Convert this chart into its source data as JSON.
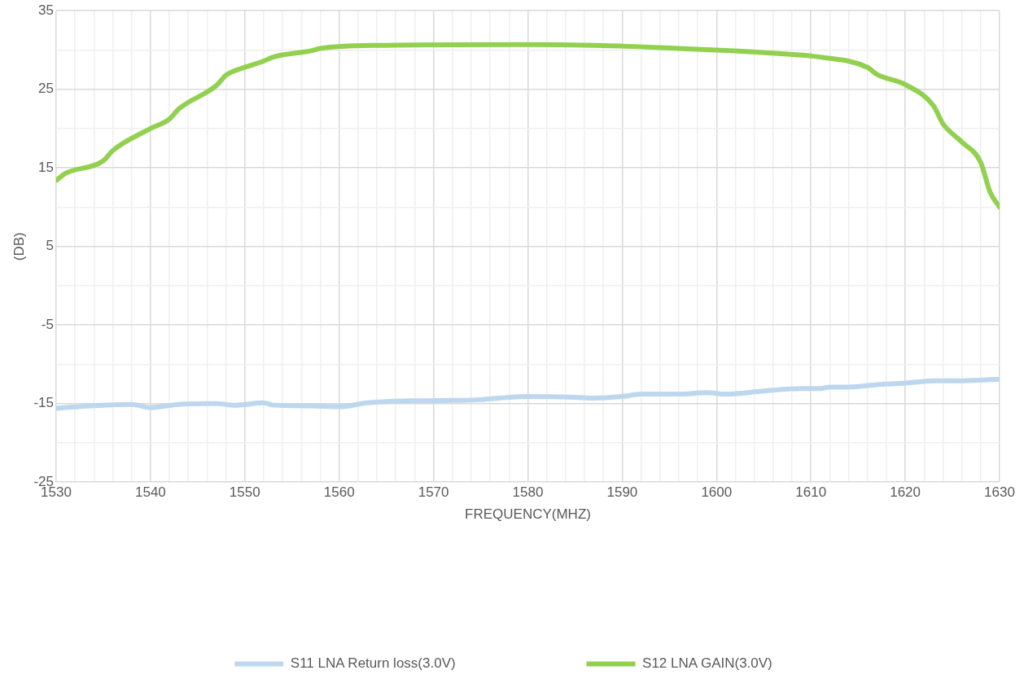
{
  "chart_data": {
    "type": "line",
    "xlabel": "FREQUENCY(MHZ)",
    "ylabel": "(DB)",
    "xlim": [
      1530,
      1630
    ],
    "xticks": [
      1530,
      {
        "value": 1532,
        "label": null
      },
      {
        "value": 1534,
        "label": null
      },
      {
        "value": 1536,
        "label": null
      },
      {
        "value": 1538,
        "label": null
      },
      1540,
      {
        "value": 1542,
        "label": null
      },
      {
        "value": 1544,
        "label": null
      },
      {
        "value": 1546,
        "label": null
      },
      {
        "value": 1548,
        "label": null
      },
      1550,
      {
        "value": 1552,
        "label": null
      },
      {
        "value": 1554,
        "label": null
      },
      {
        "value": 1556,
        "label": null
      },
      {
        "value": 1558,
        "label": null
      },
      1560,
      {
        "value": 1562,
        "label": null
      },
      {
        "value": 1564,
        "label": null
      },
      {
        "value": 1566,
        "label": null
      },
      {
        "value": 1568,
        "label": null
      },
      1570,
      {
        "value": 1572,
        "label": null
      },
      {
        "value": 1574,
        "label": null
      },
      {
        "value": 1576,
        "label": null
      },
      {
        "value": 1578,
        "label": null
      },
      1580,
      {
        "value": 1582,
        "label": null
      },
      {
        "value": 1584,
        "label": null
      },
      {
        "value": 1586,
        "label": null
      },
      {
        "value": 1588,
        "label": null
      },
      1590,
      {
        "value": 1592,
        "label": null
      },
      {
        "value": 1594,
        "label": null
      },
      {
        "value": 1596,
        "label": null
      },
      {
        "value": 1598,
        "label": null
      },
      1600,
      {
        "value": 1602,
        "label": null
      },
      {
        "value": 1604,
        "label": null
      },
      {
        "value": 1606,
        "label": null
      },
      {
        "value": 1608,
        "label": null
      },
      1610,
      {
        "value": 1612,
        "label": null
      },
      {
        "value": 1614,
        "label": null
      },
      {
        "value": 1616,
        "label": null
      },
      {
        "value": 1618,
        "label": null
      },
      1620,
      {
        "value": 1622,
        "label": null
      },
      {
        "value": 1624,
        "label": null
      },
      {
        "value": 1626,
        "label": null
      },
      {
        "value": 1628,
        "label": null
      },
      1630
    ],
    "ylim": [
      -25,
      35
    ],
    "yticks": [
      -25,
      {
        "value": -20,
        "label": null
      },
      -15,
      {
        "value": -10,
        "label": null
      },
      -5,
      {
        "value": 0,
        "label": null
      },
      5,
      {
        "value": 10,
        "label": null
      },
      15,
      {
        "value": 20,
        "label": null
      },
      25,
      {
        "value": 30,
        "label": null
      },
      35
    ],
    "grid": true,
    "legend": "bottom",
    "marker": "none",
    "line_style": "solid",
    "series": [
      {
        "name": "S11 LNA Return loss(3.0V)",
        "color": "#bdd7ee",
        "x": [
          1530,
          1531,
          1535,
          1538,
          1540,
          1543,
          1547,
          1549,
          1552,
          1553,
          1557,
          1560,
          1563,
          1566,
          1572,
          1575,
          1577,
          1580,
          1585,
          1587,
          1590,
          1592,
          1596,
          1599,
          1601,
          1605,
          1609,
          1611,
          1612,
          1614,
          1617,
          1620,
          1623,
          1626,
          1630
        ],
        "values": [
          -15.6,
          -15.5,
          -15.2,
          -15.1,
          -15.5,
          -15.1,
          -15.0,
          -15.2,
          -14.9,
          -15.2,
          -15.3,
          -15.4,
          -14.9,
          -14.7,
          -14.6,
          -14.5,
          -14.3,
          -14.1,
          -14.2,
          -14.3,
          -14.1,
          -13.8,
          -13.8,
          -13.6,
          -13.8,
          -13.4,
          -13.1,
          -13.1,
          -12.9,
          -12.9,
          -12.6,
          -12.4,
          -12.1,
          -12.1,
          -11.9
        ]
      },
      {
        "name": "S12 LNA GAIN(3.0V)",
        "color": "#92d050",
        "x": [
          1530,
          1531,
          1535,
          1536,
          1540,
          1542,
          1543,
          1547,
          1548,
          1550,
          1552,
          1553,
          1557,
          1558,
          1564,
          1580,
          1590,
          1596,
          1600,
          1606,
          1611,
          1616,
          1617,
          1620,
          1623,
          1624,
          1626,
          1628,
          1629,
          1630
        ],
        "values": [
          13.4,
          14.3,
          15.9,
          17.2,
          20.0,
          21.2,
          22.5,
          25.5,
          26.8,
          27.8,
          28.6,
          29.1,
          29.9,
          30.2,
          30.6,
          30.7,
          30.5,
          30.2,
          30.0,
          29.6,
          29.1,
          27.8,
          26.9,
          25.6,
          22.9,
          20.6,
          18.3,
          15.7,
          11.9,
          10.0
        ]
      }
    ]
  }
}
